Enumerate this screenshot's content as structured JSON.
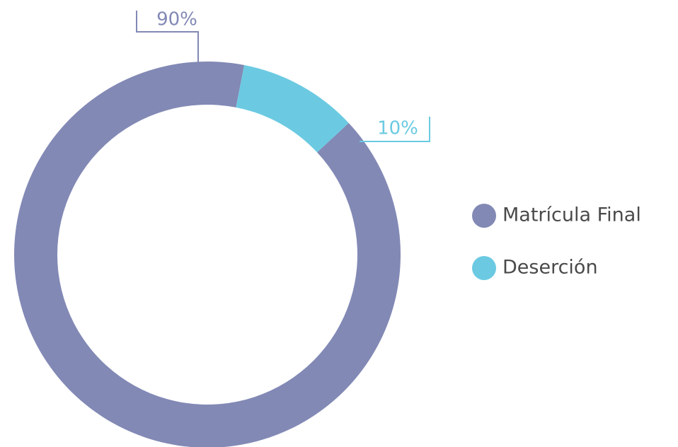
{
  "chart_data": {
    "type": "pie",
    "categories": [
      "Matrícula Final",
      "Deserción"
    ],
    "values": [
      90,
      10
    ],
    "value_labels": [
      "90%",
      "10%"
    ],
    "colors": [
      "#8289b5",
      "#6bcae2"
    ],
    "legend": "right"
  }
}
